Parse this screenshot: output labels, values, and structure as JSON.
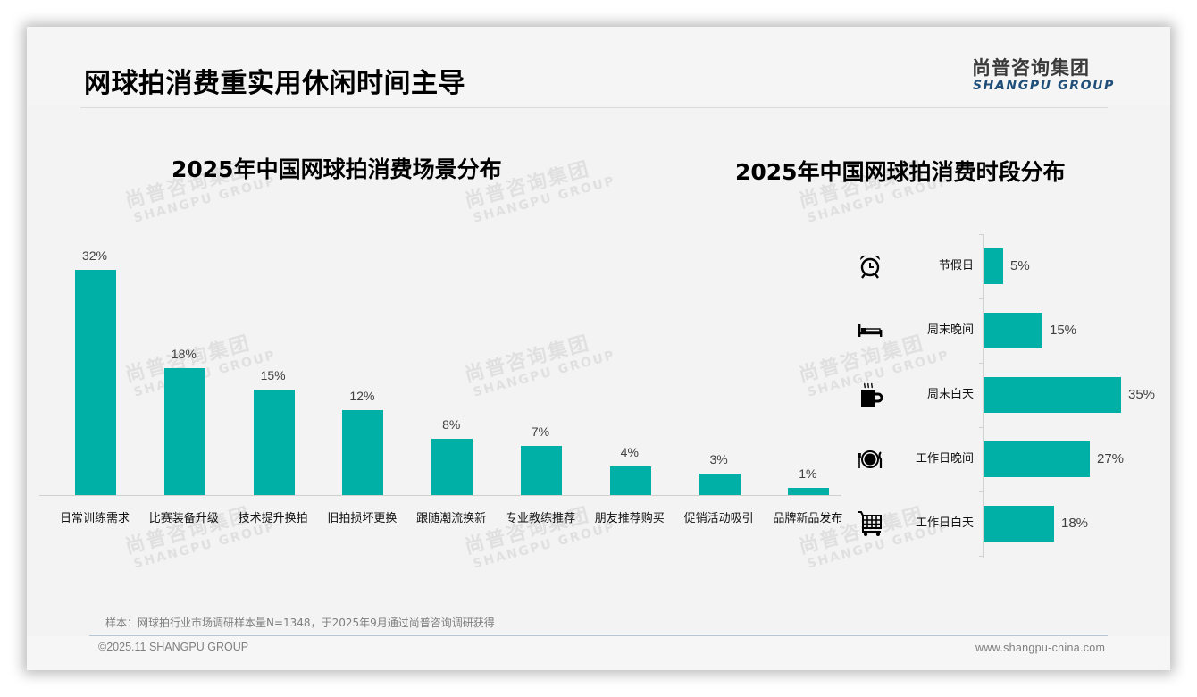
{
  "header": {
    "title": "网球拍消费重实用休闲时间主导",
    "logo_cn": "尚普咨询集团",
    "logo_en": "SHANGPU GROUP"
  },
  "watermark": {
    "cn": "尚普咨询集团",
    "en": "SHANGPU GROUP"
  },
  "colors": {
    "bar": "#00b0a6",
    "logo_en": "#1f4e79",
    "slide_bg": "#f3f3f3"
  },
  "chart_data": [
    {
      "type": "bar",
      "title": "2025年中国网球拍消费场景分布",
      "categories": [
        "日常训练需求",
        "比赛装备升级",
        "技术提升换拍",
        "旧拍损坏更换",
        "跟随潮流换新",
        "专业教练推荐",
        "朋友推荐购买",
        "促销活动吸引",
        "品牌新品发布"
      ],
      "values": [
        32,
        18,
        15,
        12,
        8,
        7,
        4,
        3,
        1
      ],
      "labels": [
        "32%",
        "18%",
        "15%",
        "12%",
        "8%",
        "7%",
        "4%",
        "3%",
        "1%"
      ],
      "xlabel": "",
      "ylabel": "",
      "ylim": [
        0,
        32
      ],
      "grid": false,
      "legend": "none",
      "orientation": "vertical"
    },
    {
      "type": "bar",
      "title": "2025年中国网球拍消费时段分布",
      "categories": [
        "节假日",
        "周末晚间",
        "周末白天",
        "工作日晚间",
        "工作日白天"
      ],
      "values": [
        5,
        15,
        35,
        27,
        18
      ],
      "labels": [
        "5%",
        "15%",
        "35%",
        "27%",
        "18%"
      ],
      "icons": [
        "alarm-clock-icon",
        "bed-icon",
        "hot-coffee-icon",
        "dining-plate-icon",
        "shopping-cart-icon"
      ],
      "xlabel": "",
      "ylabel": "",
      "xlim": [
        0,
        35
      ],
      "grid": false,
      "legend": "none",
      "orientation": "horizontal"
    }
  ],
  "footer": {
    "note": "样本：网球拍行业市场调研样本量N=1348，于2025年9月通过尚普咨询调研获得",
    "copyright": "©2025.11 SHANGPU GROUP",
    "website": "www.shangpu-china.com"
  }
}
